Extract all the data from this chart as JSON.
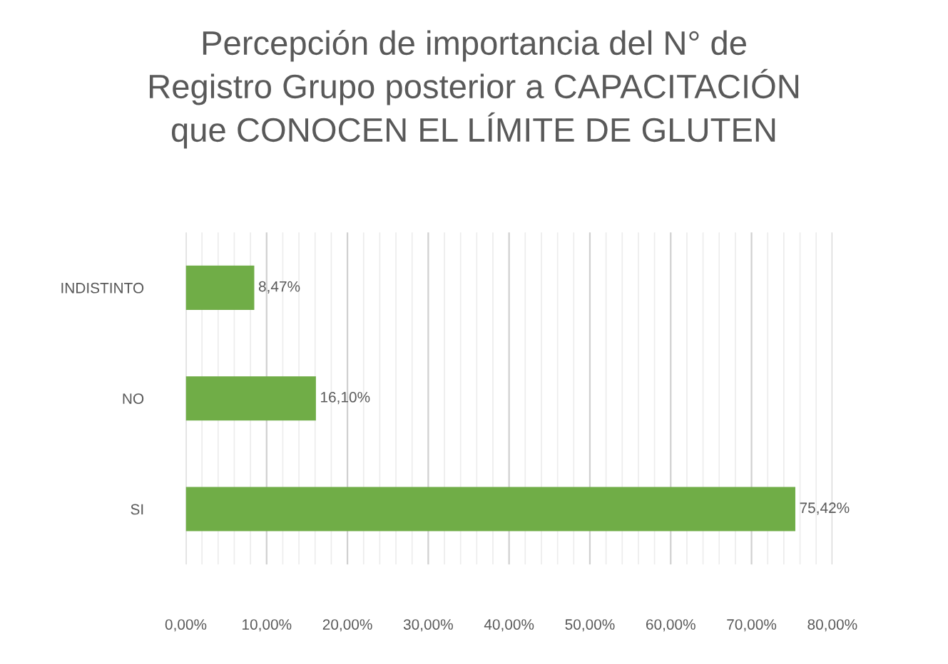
{
  "chart_data": {
    "type": "bar",
    "orientation": "horizontal",
    "title": "Percepción de importancia del N° de\nRegistro Grupo posterior a CAPACITACIÓN\nque CONOCEN EL LÍMITE DE GLUTEN",
    "categories": [
      "INDISTINTO",
      "NO",
      "SI"
    ],
    "values": [
      8.47,
      16.1,
      75.42
    ],
    "value_labels": [
      "8,47%",
      "16,10%",
      "75,42%"
    ],
    "color": "#70ad47",
    "xlim": [
      0,
      80
    ],
    "xticks": [
      {
        "value": 0,
        "label": "0,00%"
      },
      {
        "value": 2,
        "label": null
      },
      {
        "value": 4,
        "label": null
      },
      {
        "value": 6,
        "label": null
      },
      {
        "value": 8,
        "label": null
      },
      {
        "value": 10,
        "label": "10,00%"
      },
      {
        "value": 12,
        "label": null
      },
      {
        "value": 14,
        "label": null
      },
      {
        "value": 16,
        "label": null
      },
      {
        "value": 18,
        "label": null
      },
      {
        "value": 20,
        "label": "20,00%"
      },
      {
        "value": 22,
        "label": null
      },
      {
        "value": 24,
        "label": null
      },
      {
        "value": 26,
        "label": null
      },
      {
        "value": 28,
        "label": null
      },
      {
        "value": 30,
        "label": "30,00%"
      },
      {
        "value": 32,
        "label": null
      },
      {
        "value": 34,
        "label": null
      },
      {
        "value": 36,
        "label": null
      },
      {
        "value": 38,
        "label": null
      },
      {
        "value": 40,
        "label": "40,00%"
      },
      {
        "value": 42,
        "label": null
      },
      {
        "value": 44,
        "label": null
      },
      {
        "value": 46,
        "label": null
      },
      {
        "value": 48,
        "label": null
      },
      {
        "value": 50,
        "label": "50,00%"
      },
      {
        "value": 52,
        "label": null
      },
      {
        "value": 54,
        "label": null
      },
      {
        "value": 56,
        "label": null
      },
      {
        "value": 58,
        "label": null
      },
      {
        "value": 60,
        "label": "60,00%"
      },
      {
        "value": 62,
        "label": null
      },
      {
        "value": 64,
        "label": null
      },
      {
        "value": 66,
        "label": null
      },
      {
        "value": 68,
        "label": null
      },
      {
        "value": 70,
        "label": "70,00%"
      },
      {
        "value": 72,
        "label": null
      },
      {
        "value": 74,
        "label": null
      },
      {
        "value": 76,
        "label": null
      },
      {
        "value": 78,
        "label": null
      },
      {
        "value": 80,
        "label": "80,00%"
      }
    ],
    "grid": "x"
  }
}
